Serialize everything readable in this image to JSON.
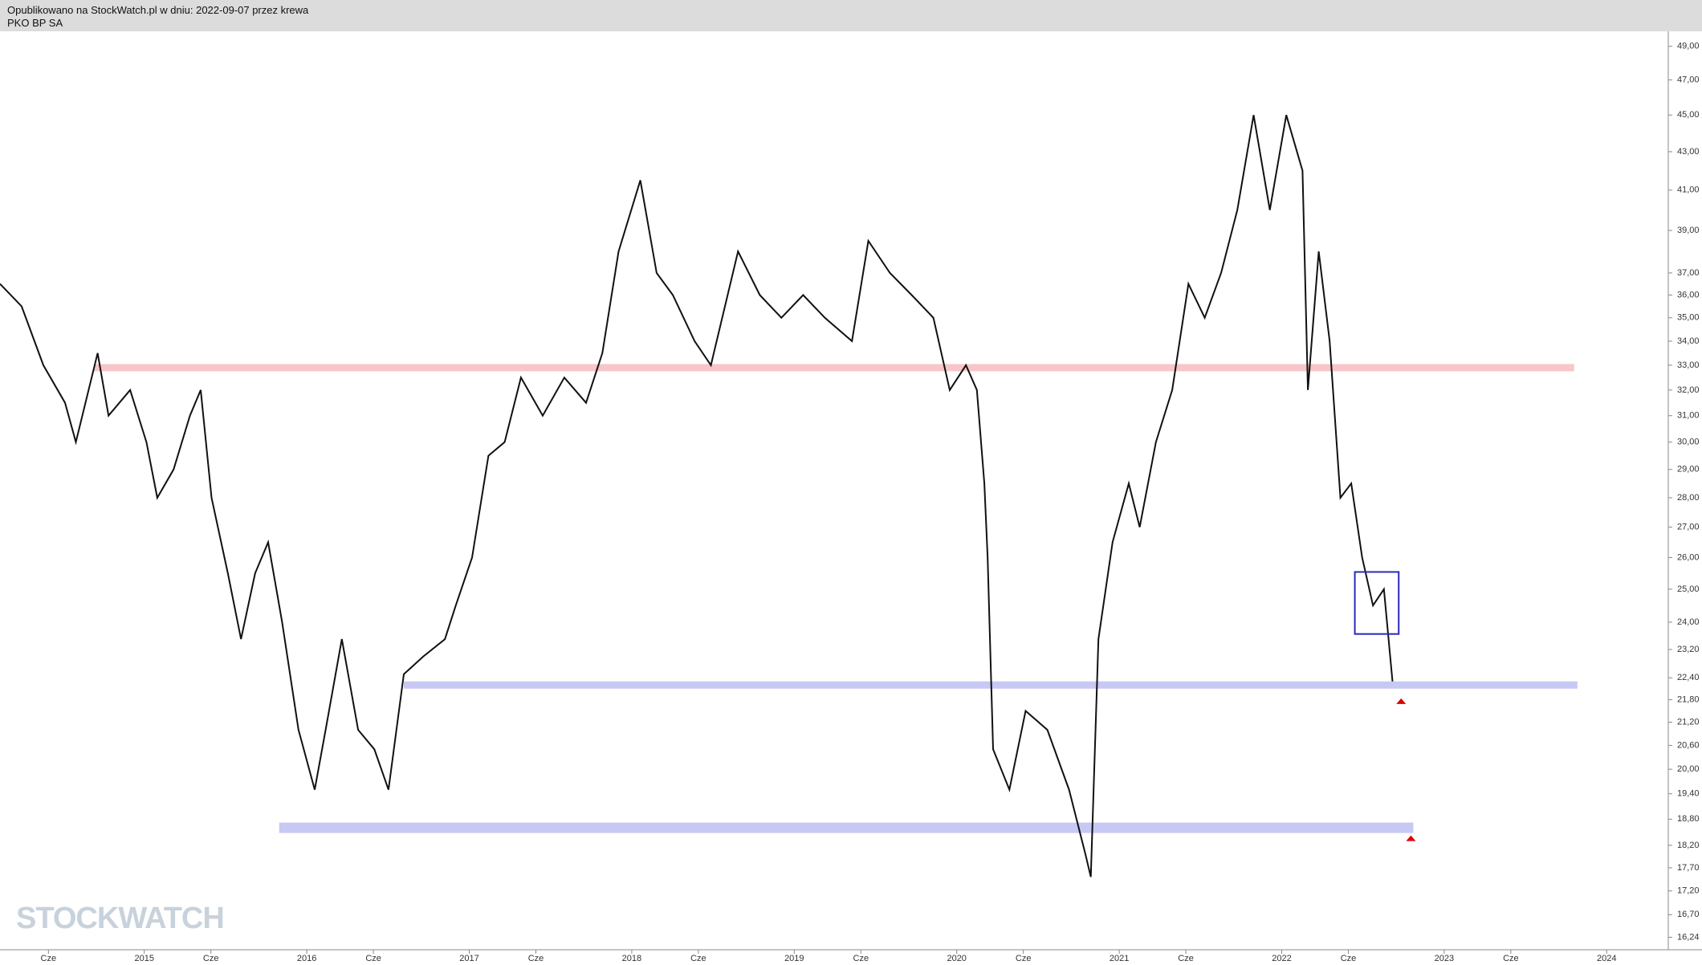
{
  "header": {
    "published": "Opublikowano na StockWatch.pl w dniu: 2022-09-07 przez krewa",
    "ticker": "PKO BP SA"
  },
  "logo": "STOCKWATCH",
  "chart_data": {
    "type": "line",
    "log_scale": true,
    "color": "#111111",
    "xlim": [
      2014.112,
      2024.379
    ],
    "ylim": [
      15.99,
      49.87
    ],
    "xticks": [
      {
        "value": 2014.41,
        "label": "Cze"
      },
      2015,
      {
        "value": 2015.41,
        "label": "Cze"
      },
      2016,
      {
        "value": 2016.41,
        "label": "Cze"
      },
      2017,
      {
        "value": 2017.41,
        "label": "Cze"
      },
      2018,
      {
        "value": 2018.41,
        "label": "Cze"
      },
      2019,
      {
        "value": 2019.41,
        "label": "Cze"
      },
      2020,
      {
        "value": 2020.41,
        "label": "Cze"
      },
      2021,
      {
        "value": 2021.41,
        "label": "Cze"
      },
      2022,
      {
        "value": 2022.41,
        "label": "Cze"
      },
      2023,
      {
        "value": 2023.41,
        "label": "Cze"
      },
      2024
    ],
    "yticks": [
      {
        "value": 16.24,
        "label": "16,24"
      },
      {
        "value": 16.7,
        "label": "16,70"
      },
      {
        "value": 17.2,
        "label": "17,20"
      },
      {
        "value": 17.7,
        "label": "17,70"
      },
      {
        "value": 18.2,
        "label": "18,20"
      },
      {
        "value": 18.8,
        "label": "18,80"
      },
      {
        "value": 19.4,
        "label": "19,40"
      },
      {
        "value": 20,
        "label": "20,00"
      },
      {
        "value": 20.6,
        "label": "20,60"
      },
      {
        "value": 21.2,
        "label": "21,20"
      },
      {
        "value": 21.8,
        "label": "21,80"
      },
      {
        "value": 22.4,
        "label": "22,40"
      },
      {
        "value": 23.2,
        "label": "23,20"
      },
      {
        "value": 24,
        "label": "24,00"
      },
      {
        "value": 25,
        "label": "25,00"
      },
      {
        "value": 26,
        "label": "26,00"
      },
      {
        "value": 27,
        "label": "27,00"
      },
      {
        "value": 28,
        "label": "28,00"
      },
      {
        "value": 29,
        "label": "29,00"
      },
      {
        "value": 30,
        "label": "30,00"
      },
      {
        "value": 31,
        "label": "31,00"
      },
      {
        "value": 32,
        "label": "32,00"
      },
      {
        "value": 33,
        "label": "33,00"
      },
      {
        "value": 34,
        "label": "34,00"
      },
      {
        "value": 35,
        "label": "35,00"
      },
      {
        "value": 36,
        "label": "36,00"
      },
      {
        "value": 37,
        "label": "37,00"
      },
      {
        "value": 39,
        "label": "39,00"
      },
      {
        "value": 41,
        "label": "41,00"
      },
      {
        "value": 43,
        "label": "43,00"
      },
      {
        "value": 45,
        "label": "45,00"
      },
      {
        "value": 47,
        "label": "47,00"
      },
      {
        "value": 49,
        "label": "49,00"
      }
    ],
    "x": [
      2014.112,
      2014.245,
      2014.379,
      2014.512,
      2014.579,
      2014.713,
      2014.78,
      2014.913,
      2015.013,
      2015.08,
      2015.18,
      2015.281,
      2015.347,
      2015.414,
      2015.514,
      2015.595,
      2015.682,
      2015.762,
      2015.848,
      2015.949,
      2016.049,
      2016.116,
      2016.216,
      2016.316,
      2016.416,
      2016.503,
      2016.597,
      2016.717,
      2016.85,
      2016.917,
      2017.017,
      2017.118,
      2017.218,
      2017.318,
      2017.452,
      2017.585,
      2017.719,
      2017.819,
      2017.919,
      2018.053,
      2018.153,
      2018.253,
      2018.387,
      2018.487,
      2018.654,
      2018.788,
      2018.921,
      2019.055,
      2019.188,
      2019.355,
      2019.456,
      2019.589,
      2019.723,
      2019.856,
      2019.957,
      2020.057,
      2020.124,
      2020.17,
      2020.19,
      2020.224,
      2020.324,
      2020.424,
      2020.558,
      2020.691,
      2020.792,
      2020.825,
      2020.872,
      2020.959,
      2021.059,
      2021.126,
      2021.226,
      2021.326,
      2021.426,
      2021.526,
      2021.627,
      2021.727,
      2021.827,
      2021.927,
      2022.028,
      2022.128,
      2022.161,
      2022.228,
      2022.295,
      2022.361,
      2022.428,
      2022.495,
      2022.562,
      2022.629,
      2022.682
    ],
    "values": [
      36.5,
      35.5,
      33,
      31.5,
      30,
      33.5,
      31,
      32,
      30,
      28,
      29,
      31,
      32,
      28,
      25.5,
      23.5,
      25.5,
      26.5,
      24,
      21,
      19.5,
      21,
      23.5,
      21,
      20.5,
      19.5,
      22.5,
      23,
      23.5,
      24.5,
      26,
      29.5,
      30,
      32.5,
      31,
      32.5,
      31.5,
      33.5,
      38,
      41.5,
      37,
      36,
      34,
      33,
      38,
      36,
      35,
      36,
      35,
      34,
      38.5,
      37,
      36,
      35,
      32,
      33,
      32,
      28.5,
      26,
      20.5,
      19.5,
      21.5,
      21,
      19.5,
      18,
      17.5,
      23.5,
      26.5,
      28.5,
      27,
      30,
      32,
      36.5,
      35,
      37,
      40,
      45,
      40,
      45,
      42,
      32,
      38,
      34,
      28,
      28.5,
      26,
      24.5,
      25,
      22.3
    ],
    "levels": [
      {
        "value": 32.9,
        "from": 2014.69,
        "to": 2023.8,
        "color": "#f7c6c9"
      },
      {
        "value": 22.2,
        "from": 2016.597,
        "to": 2023.82,
        "color": "#c8c8f5"
      },
      {
        "value": 18.6,
        "from": 2015.83,
        "to": 2022.81,
        "color": "#c8c8f5"
      }
    ],
    "box": {
      "top": 25.54,
      "bottom": 23.65,
      "from": 2022.45,
      "to": 2022.72,
      "color": "#2a2ab8"
    },
    "markers": [
      {
        "x": 2022.735,
        "y": 21.75
      },
      {
        "x": 2022.795,
        "y": 18.35
      }
    ],
    "marker_color": "#dd0000"
  }
}
